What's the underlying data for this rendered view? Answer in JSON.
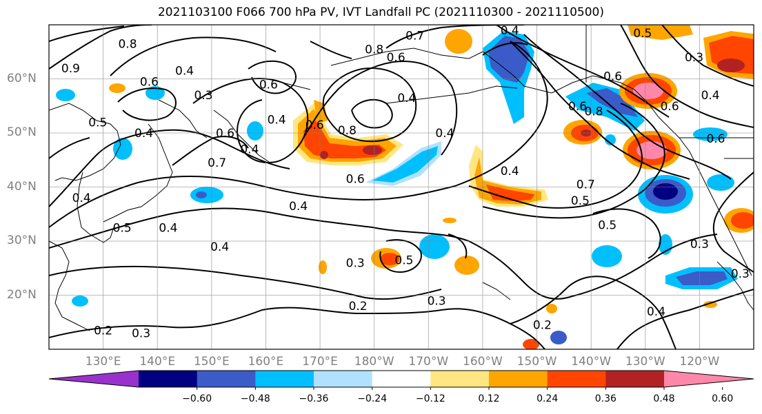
{
  "title": "2021103100 F066 700 hPa PV, IVT Landfall PC (2021110300 - 2021110500)",
  "lat_labels": [
    {
      "text": "60°N",
      "lat": 60
    },
    {
      "text": "50°N",
      "lat": 50
    },
    {
      "text": "40°N",
      "lat": 40
    },
    {
      "text": "30°N",
      "lat": 30
    },
    {
      "text": "20°N",
      "lat": 20
    }
  ],
  "lon_labels": [
    {
      "text": "130°E",
      "lon": 130
    },
    {
      "text": "140°E",
      "lon": 140
    },
    {
      "text": "150°E",
      "lon": 150
    },
    {
      "text": "160°E",
      "lon": 160
    },
    {
      "text": "170°E",
      "lon": 170
    },
    {
      "text": "180°W",
      "lon": 180
    },
    {
      "text": "170°W",
      "lon": 190
    },
    {
      "text": "160°W",
      "lon": 200
    },
    {
      "text": "150°W",
      "lon": 210
    },
    {
      "text": "140°W",
      "lon": 220
    },
    {
      "text": "130°W",
      "lon": 230
    },
    {
      "text": "120°W",
      "lon": 240
    }
  ],
  "map_extent": {
    "lon_min": 120,
    "lon_max": 250,
    "lat_min": 10,
    "lat_max": 70
  },
  "colorbar": {
    "ticks": [
      "−0.60",
      "−0.48",
      "−0.36",
      "−0.24",
      "−0.12",
      "0.12",
      "0.24",
      "0.36",
      "0.48",
      "0.60"
    ],
    "colors": [
      "#9932CC",
      "#000080",
      "#3A5BC8",
      "#00BFFF",
      "#B0E2FF",
      "#FFFFFF",
      "#FFE680",
      "#FFA500",
      "#FF4500",
      "#B22222",
      "#FF88AA"
    ]
  },
  "contour_labels": [
    {
      "text": "0.8",
      "lon": 134.5,
      "lat": 66.5
    },
    {
      "text": "0.9",
      "lon": 124.0,
      "lat": 62.0
    },
    {
      "text": "0.6",
      "lon": 138.5,
      "lat": 59.5
    },
    {
      "text": "0.4",
      "lon": 145.0,
      "lat": 61.5
    },
    {
      "text": "0.3",
      "lon": 148.5,
      "lat": 57.0
    },
    {
      "text": "0.5",
      "lon": 129.0,
      "lat": 52.0
    },
    {
      "text": "0.4",
      "lon": 137.5,
      "lat": 50.0
    },
    {
      "text": "0.6",
      "lon": 152.5,
      "lat": 50.0
    },
    {
      "text": "0.7",
      "lon": 151.0,
      "lat": 44.5
    },
    {
      "text": "0.4",
      "lon": 157.0,
      "lat": 47.0
    },
    {
      "text": "0.4",
      "lon": 162.0,
      "lat": 52.5
    },
    {
      "text": "0.6",
      "lon": 160.5,
      "lat": 59.0
    },
    {
      "text": "0.6",
      "lon": 169.0,
      "lat": 51.5
    },
    {
      "text": "0.8",
      "lon": 175.0,
      "lat": 50.5
    },
    {
      "text": "0.6",
      "lon": 176.5,
      "lat": 41.5
    },
    {
      "text": "0.4",
      "lon": 166.0,
      "lat": 36.5
    },
    {
      "text": "0.4",
      "lon": 126.0,
      "lat": 38.0
    },
    {
      "text": "0.4",
      "lon": 142.0,
      "lat": 32.5
    },
    {
      "text": "0.5",
      "lon": 133.5,
      "lat": 32.5
    },
    {
      "text": "0.4",
      "lon": 151.5,
      "lat": 29.0
    },
    {
      "text": "0.3",
      "lon": 176.5,
      "lat": 26.0
    },
    {
      "text": "0.5",
      "lon": 185.5,
      "lat": 26.5
    },
    {
      "text": "0.3",
      "lon": 191.5,
      "lat": 19.0
    },
    {
      "text": "0.2",
      "lon": 177.0,
      "lat": 18.0
    },
    {
      "text": "0.2",
      "lon": 130.0,
      "lat": 13.5
    },
    {
      "text": "0.3",
      "lon": 137.0,
      "lat": 13.0
    },
    {
      "text": "0.2",
      "lon": 211.0,
      "lat": 14.5
    },
    {
      "text": "0.7",
      "lon": 187.5,
      "lat": 68.0
    },
    {
      "text": "0.8",
      "lon": 180.0,
      "lat": 65.5
    },
    {
      "text": "0.6",
      "lon": 184.0,
      "lat": 64.0
    },
    {
      "text": "0.4",
      "lon": 186.0,
      "lat": 56.5
    },
    {
      "text": "0.4",
      "lon": 193.0,
      "lat": 50.0
    },
    {
      "text": "0.4",
      "lon": 205.0,
      "lat": 69.0
    },
    {
      "text": "0.4",
      "lon": 205.0,
      "lat": 43.0
    },
    {
      "text": "0.6",
      "lon": 217.5,
      "lat": 55.0
    },
    {
      "text": "0.8",
      "lon": 220.5,
      "lat": 54.0
    },
    {
      "text": "0.7",
      "lon": 219.0,
      "lat": 40.5
    },
    {
      "text": "0.5",
      "lon": 218.0,
      "lat": 37.5
    },
    {
      "text": "0.5",
      "lon": 223.0,
      "lat": 33.0
    },
    {
      "text": "0.6",
      "lon": 224.0,
      "lat": 60.5
    },
    {
      "text": "0.5",
      "lon": 229.5,
      "lat": 68.5
    },
    {
      "text": "0.3",
      "lon": 239.0,
      "lat": 64.0
    },
    {
      "text": "0.4",
      "lon": 242.0,
      "lat": 57.0
    },
    {
      "text": "0.6",
      "lon": 234.5,
      "lat": 55.0
    },
    {
      "text": "0.6",
      "lon": 243.0,
      "lat": 49.0
    },
    {
      "text": "0.3",
      "lon": 240.0,
      "lat": 29.5
    },
    {
      "text": "0.4",
      "lon": 232.0,
      "lat": 17.0
    },
    {
      "text": "0.3",
      "lon": 247.5,
      "lat": 24.0
    }
  ]
}
